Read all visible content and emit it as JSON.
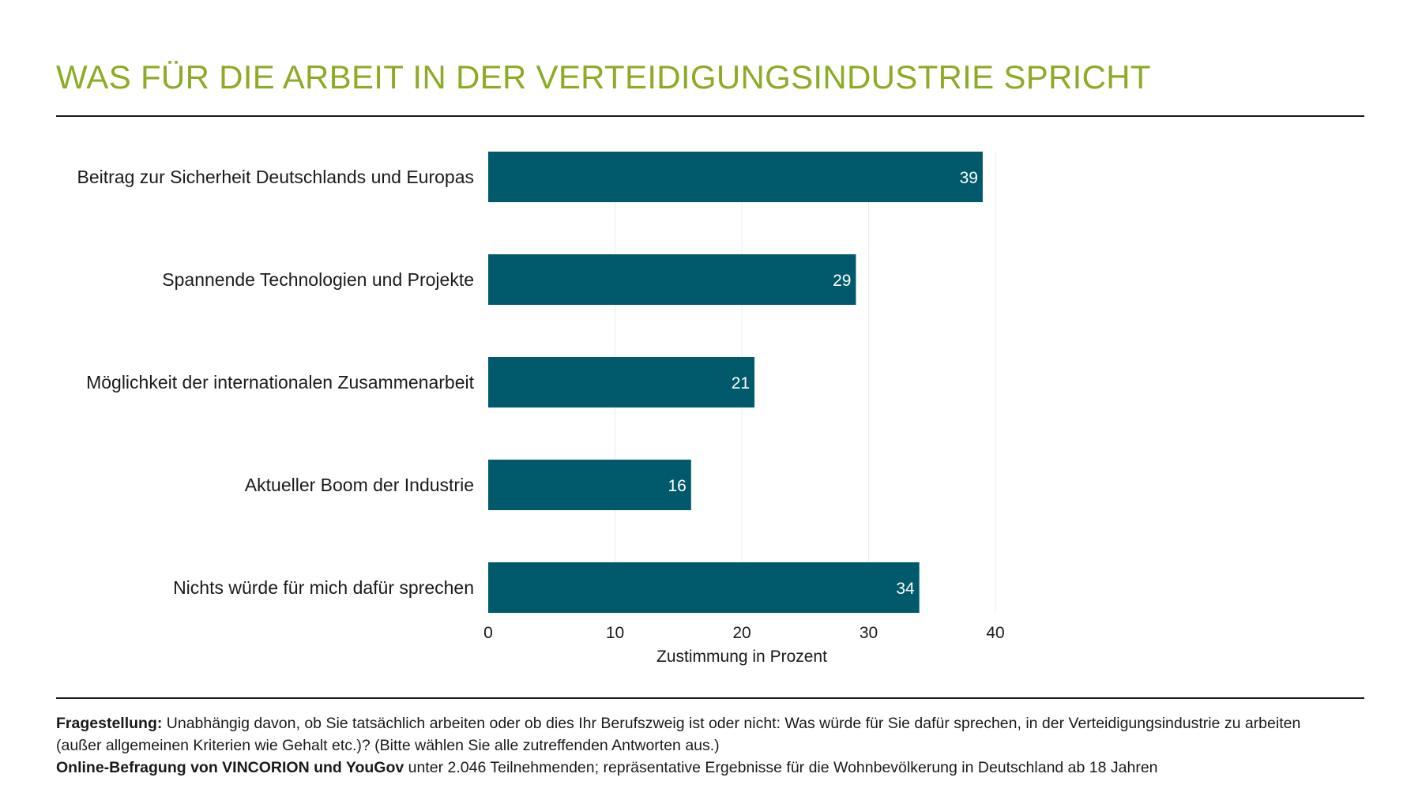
{
  "header": {
    "title": "WAS FÜR DIE ARBEIT IN DER VERTEIDIGUNGSINDUSTRIE SPRICHT",
    "title_color": "#8dab26"
  },
  "chart_data": {
    "type": "bar",
    "orientation": "horizontal",
    "categories": [
      "Beitrag zur Sicherheit Deutschlands und Europas",
      "Spannende Technologien und Projekte",
      "Möglichkeit der internationalen Zusammenarbeit",
      "Aktueller Boom der Industrie",
      "Nichts würde für mich dafür sprechen"
    ],
    "values": [
      39,
      29,
      21,
      16,
      34
    ],
    "value_labels": [
      "39",
      "29",
      "21",
      "16",
      "34"
    ],
    "xlabel": "Zustimmung in Prozent",
    "xlim": [
      0,
      40
    ],
    "xticks": [
      0,
      10,
      20,
      30,
      40
    ],
    "xtick_labels": [
      "0",
      "10",
      "20",
      "30",
      "40"
    ],
    "grid": "vertical",
    "bar_color": "#005a6c",
    "label_color": "#ffffff"
  },
  "footnote": {
    "question_label": "Fragestellung:",
    "question_text": " Unabhängig davon, ob Sie tatsächlich arbeiten oder ob dies Ihr Berufszweig ist oder nicht: Was würde für Sie dafür sprechen, in der Verteidigungsindustrie zu arbeiten (außer allgemeinen Kriterien wie Gehalt etc.)? (Bitte wählen Sie alle zutreffenden Antworten aus.)",
    "source_label": "Online-Befragung von VINCORION und YouGov",
    "source_text": " unter 2.046 Teilnehmenden; repräsentative Ergebnisse für die Wohnbevölkerung in Deutschland ab 18 Jahren"
  }
}
